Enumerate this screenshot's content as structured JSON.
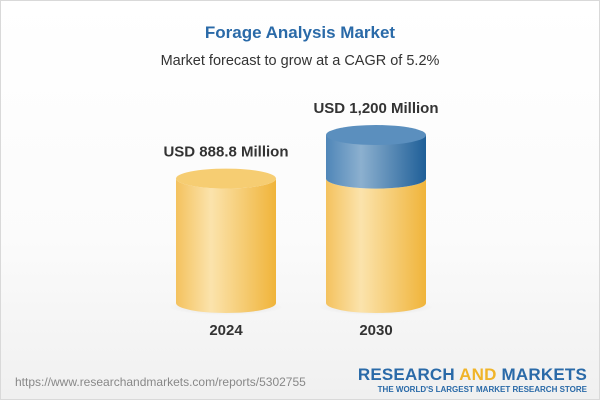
{
  "title": "Forage Analysis Market",
  "subtitle": "Market forecast to grow at a CAGR of 5.2%",
  "footer": {
    "url": "https://www.researchandmarkets.com/reports/5302755",
    "logo_part1": "RESEARCH ",
    "logo_part2": "AND",
    "logo_part3": " MARKETS",
    "logo_tagline": "THE WORLD'S LARGEST MARKET RESEARCH STORE"
  },
  "colors": {
    "base": "#f2b53c",
    "growth": "#2a6aa8",
    "title": "#2a6aa8"
  },
  "chart_data": {
    "type": "bar",
    "title": "Forage Analysis Market",
    "subtitle": "Market forecast to grow at a CAGR of 5.2%",
    "categories": [
      "2024",
      "2030"
    ],
    "values": [
      888.8,
      1200
    ],
    "unit": "USD Million",
    "data_labels": [
      "USD 888.8 Million",
      "USD 1,200 Million"
    ],
    "cagr": "5.2%"
  }
}
